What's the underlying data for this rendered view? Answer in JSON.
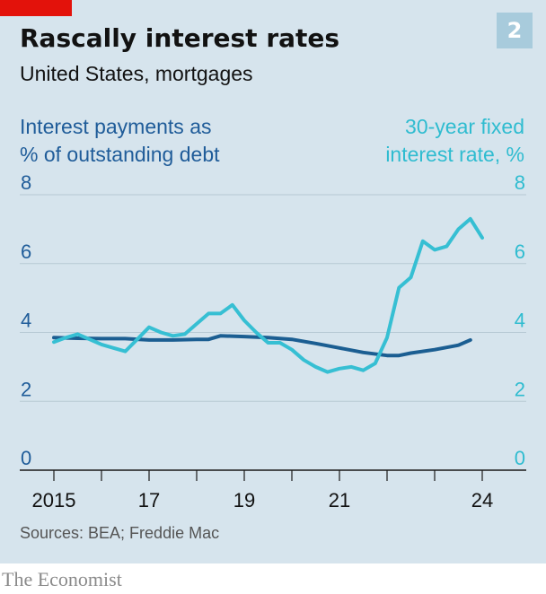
{
  "badge": "2",
  "chart_data": {
    "type": "line",
    "title": "Rascally interest rates",
    "subtitle": "United States, mortgages",
    "left_axis_label": "Interest payments as % of outstanding debt",
    "left_axis_label_lines": [
      "Interest payments as",
      "% of outstanding debt"
    ],
    "right_axis_label": "30-year fixed interest rate, %",
    "right_axis_label_lines": [
      "30-year fixed",
      "interest rate, %"
    ],
    "ylim": [
      0,
      8
    ],
    "yticks": [
      0,
      2,
      4,
      6,
      8
    ],
    "xlim": [
      2014.5,
      2024.6
    ],
    "xticks": [
      {
        "value": 2015,
        "label": "2015"
      },
      {
        "value": 2017,
        "label": "17"
      },
      {
        "value": 2019,
        "label": "19"
      },
      {
        "value": 2021,
        "label": "21"
      },
      {
        "value": 2024,
        "label": "24"
      }
    ],
    "x_minor_ticks": [
      2015,
      2016,
      2017,
      2018,
      2019,
      2020,
      2021,
      2022,
      2023,
      2024
    ],
    "grid": true,
    "colors": {
      "payments": "#1b5e92",
      "rate": "#36bfd3",
      "grid": "#b7c9d4",
      "axis": "#1a1a1a",
      "left_ticks": "#1f5c99",
      "right_ticks": "#2fbcd0"
    },
    "series": [
      {
        "key": "payments",
        "axis": "left",
        "x": [
          2015.0,
          2015.5,
          2016.0,
          2016.5,
          2017.0,
          2017.5,
          2018.0,
          2018.25,
          2018.5,
          2019.0,
          2019.5,
          2020.0,
          2020.5,
          2021.0,
          2021.5,
          2022.0,
          2022.25,
          2022.5,
          2023.0,
          2023.5,
          2023.75
        ],
        "values": [
          3.85,
          3.83,
          3.82,
          3.82,
          3.78,
          3.78,
          3.8,
          3.8,
          3.9,
          3.88,
          3.85,
          3.8,
          3.68,
          3.55,
          3.42,
          3.33,
          3.33,
          3.4,
          3.5,
          3.63,
          3.78
        ]
      },
      {
        "key": "rate",
        "axis": "right",
        "x": [
          2015.0,
          2015.25,
          2015.5,
          2015.75,
          2016.0,
          2016.25,
          2016.5,
          2016.75,
          2017.0,
          2017.25,
          2017.5,
          2017.75,
          2018.0,
          2018.25,
          2018.5,
          2018.75,
          2019.0,
          2019.25,
          2019.5,
          2019.75,
          2020.0,
          2020.25,
          2020.5,
          2020.75,
          2021.0,
          2021.25,
          2021.5,
          2021.75,
          2022.0,
          2022.25,
          2022.5,
          2022.75,
          2023.0,
          2023.25,
          2023.5,
          2023.75,
          2024.0
        ],
        "values": [
          3.72,
          3.85,
          3.95,
          3.8,
          3.65,
          3.55,
          3.45,
          3.8,
          4.15,
          4.0,
          3.9,
          3.95,
          4.25,
          4.55,
          4.55,
          4.8,
          4.35,
          4.0,
          3.7,
          3.7,
          3.5,
          3.2,
          3.0,
          2.85,
          2.95,
          3.0,
          2.9,
          3.1,
          3.85,
          5.3,
          5.6,
          6.65,
          6.4,
          6.5,
          7.0,
          7.3,
          6.75
        ]
      }
    ]
  },
  "source": "Sources: BEA; Freddie Mac",
  "footer": "The Economist"
}
